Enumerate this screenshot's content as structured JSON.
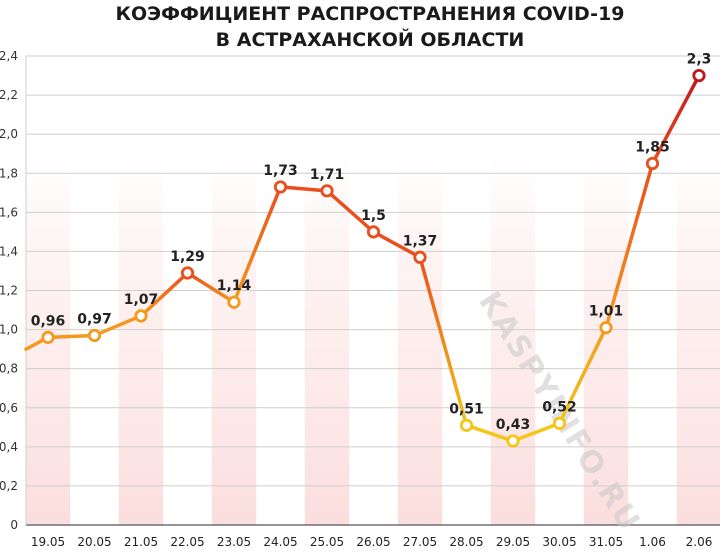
{
  "chart_data": {
    "type": "line",
    "title_lines": [
      "КОЭФФИЦИЕНТ РАСПРОСТРАНЕНИЯ COVID-19",
      "В АСТРАХАНСКОЙ ОБЛАСТИ"
    ],
    "categories": [
      "19.05",
      "20.05",
      "21.05",
      "22.05",
      "23.05",
      "24.05",
      "25.05",
      "26.05",
      "27.05",
      "28.05",
      "29.05",
      "30.05",
      "31.05",
      "1.06",
      "2.06"
    ],
    "values": [
      0.96,
      0.97,
      1.07,
      1.29,
      1.14,
      1.73,
      1.71,
      1.5,
      1.37,
      0.51,
      0.43,
      0.52,
      1.01,
      1.85,
      2.3
    ],
    "data_labels": [
      "0,96",
      "0,97",
      "1,07",
      "1,29",
      "1,14",
      "1,73",
      "1,71",
      "1,5",
      "1,37",
      "0,51",
      "0,43",
      "0,52",
      "1,01",
      "1,85",
      "2,3"
    ],
    "left_start_value": 0.9,
    "y_ticks": [
      0,
      0.2,
      0.4,
      0.6,
      0.8,
      1.0,
      1.2,
      1.4,
      1.6,
      1.8,
      2.0,
      2.2,
      2.4
    ],
    "y_tick_labels": [
      "0",
      "0,2",
      "0,4",
      "0,6",
      "0,8",
      "1,0",
      "1,2",
      "1,4",
      "1,6",
      "1,8",
      "2,0",
      "2,2",
      "2,4"
    ],
    "ylim": [
      0,
      2.4
    ],
    "grid": true,
    "xlabel": "",
    "ylabel": "",
    "colors": {
      "low": "#f5c518",
      "mid": "#f39a1e",
      "high": "#e94e1b",
      "peak": "#c0161c",
      "stripe": "#fbe6e6",
      "grid": "#cfcfcf",
      "axis": "#555555"
    }
  },
  "watermark": "KASPYINFO.RU"
}
